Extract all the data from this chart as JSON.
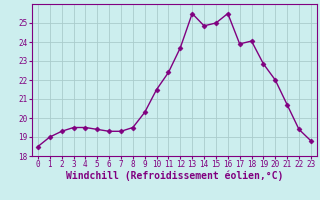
{
  "x": [
    0,
    1,
    2,
    3,
    4,
    5,
    6,
    7,
    8,
    9,
    10,
    11,
    12,
    13,
    14,
    15,
    16,
    17,
    18,
    19,
    20,
    21,
    22,
    23
  ],
  "y": [
    18.5,
    19.0,
    19.3,
    19.5,
    19.5,
    19.4,
    19.3,
    19.3,
    19.5,
    20.3,
    21.5,
    22.4,
    23.7,
    25.5,
    24.85,
    25.0,
    25.5,
    23.9,
    24.05,
    22.85,
    22.0,
    20.7,
    19.4,
    18.8
  ],
  "line_color": "#800080",
  "marker": "D",
  "marker_size": 2.5,
  "bg_color": "#cceeee",
  "grid_color": "#aacccc",
  "xlabel": "Windchill (Refroidissement éolien,°C)",
  "ylim": [
    18,
    26
  ],
  "xlim": [
    -0.5,
    23.5
  ],
  "yticks": [
    18,
    19,
    20,
    21,
    22,
    23,
    24,
    25
  ],
  "xticks": [
    0,
    1,
    2,
    3,
    4,
    5,
    6,
    7,
    8,
    9,
    10,
    11,
    12,
    13,
    14,
    15,
    16,
    17,
    18,
    19,
    20,
    21,
    22,
    23
  ],
  "tick_fontsize": 5.5,
  "xlabel_fontsize": 7.0,
  "line_width": 1.0
}
